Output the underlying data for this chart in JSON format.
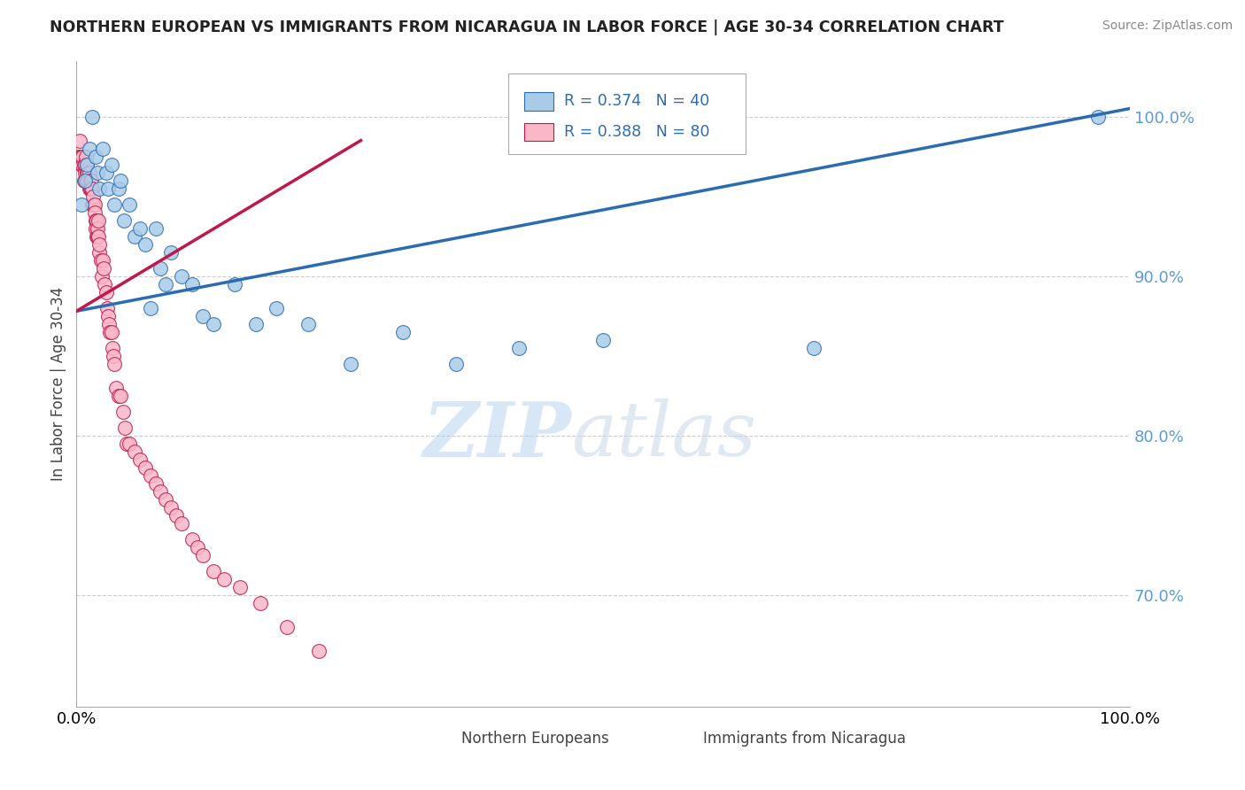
{
  "title": "NORTHERN EUROPEAN VS IMMIGRANTS FROM NICARAGUA IN LABOR FORCE | AGE 30-34 CORRELATION CHART",
  "source": "Source: ZipAtlas.com",
  "ylabel": "In Labor Force | Age 30-34",
  "xlim": [
    0.0,
    1.0
  ],
  "ylim": [
    0.63,
    1.035
  ],
  "blue_R": 0.374,
  "blue_N": 40,
  "pink_R": 0.388,
  "pink_N": 80,
  "blue_color": "#a8cce8",
  "blue_line_color": "#2b6cb0",
  "pink_color": "#f9b8c8",
  "pink_line_color": "#c0174c",
  "watermark_zip": "ZIP",
  "watermark_atlas": "atlas",
  "blue_scatter_x": [
    0.005,
    0.008,
    0.01,
    0.012,
    0.015,
    0.018,
    0.02,
    0.022,
    0.025,
    0.028,
    0.03,
    0.033,
    0.036,
    0.04,
    0.042,
    0.045,
    0.05,
    0.055,
    0.06,
    0.065,
    0.07,
    0.075,
    0.08,
    0.085,
    0.09,
    0.1,
    0.11,
    0.12,
    0.13,
    0.15,
    0.17,
    0.19,
    0.22,
    0.26,
    0.31,
    0.36,
    0.42,
    0.5,
    0.7,
    0.97
  ],
  "blue_scatter_y": [
    0.945,
    0.96,
    0.97,
    0.98,
    1.0,
    0.975,
    0.965,
    0.955,
    0.98,
    0.965,
    0.955,
    0.97,
    0.945,
    0.955,
    0.96,
    0.935,
    0.945,
    0.925,
    0.93,
    0.92,
    0.88,
    0.93,
    0.905,
    0.895,
    0.915,
    0.9,
    0.895,
    0.875,
    0.87,
    0.895,
    0.87,
    0.88,
    0.87,
    0.845,
    0.865,
    0.845,
    0.855,
    0.86,
    0.855,
    1.0
  ],
  "pink_scatter_x": [
    0.002,
    0.003,
    0.004,
    0.005,
    0.005,
    0.006,
    0.006,
    0.007,
    0.007,
    0.008,
    0.008,
    0.009,
    0.009,
    0.01,
    0.01,
    0.01,
    0.011,
    0.011,
    0.012,
    0.012,
    0.013,
    0.013,
    0.014,
    0.014,
    0.015,
    0.015,
    0.016,
    0.016,
    0.017,
    0.017,
    0.018,
    0.018,
    0.019,
    0.019,
    0.02,
    0.02,
    0.021,
    0.021,
    0.022,
    0.022,
    0.023,
    0.024,
    0.025,
    0.026,
    0.027,
    0.028,
    0.029,
    0.03,
    0.031,
    0.032,
    0.033,
    0.034,
    0.035,
    0.036,
    0.038,
    0.04,
    0.042,
    0.044,
    0.046,
    0.048,
    0.05,
    0.055,
    0.06,
    0.065,
    0.07,
    0.075,
    0.08,
    0.085,
    0.09,
    0.095,
    0.1,
    0.11,
    0.115,
    0.12,
    0.13,
    0.14,
    0.155,
    0.175,
    0.2,
    0.23
  ],
  "pink_scatter_y": [
    0.975,
    0.985,
    0.975,
    0.97,
    0.975,
    0.97,
    0.975,
    0.97,
    0.96,
    0.965,
    0.97,
    0.96,
    0.975,
    0.965,
    0.97,
    0.96,
    0.965,
    0.96,
    0.965,
    0.955,
    0.96,
    0.955,
    0.96,
    0.955,
    0.955,
    0.945,
    0.945,
    0.95,
    0.945,
    0.94,
    0.935,
    0.93,
    0.925,
    0.935,
    0.925,
    0.93,
    0.935,
    0.925,
    0.915,
    0.92,
    0.91,
    0.9,
    0.91,
    0.905,
    0.895,
    0.89,
    0.88,
    0.875,
    0.87,
    0.865,
    0.865,
    0.855,
    0.85,
    0.845,
    0.83,
    0.825,
    0.825,
    0.815,
    0.805,
    0.795,
    0.795,
    0.79,
    0.785,
    0.78,
    0.775,
    0.77,
    0.765,
    0.76,
    0.755,
    0.75,
    0.745,
    0.735,
    0.73,
    0.725,
    0.715,
    0.71,
    0.705,
    0.695,
    0.68,
    0.665
  ],
  "blue_trend_x": [
    0.0,
    1.0
  ],
  "blue_trend_y_start": 0.878,
  "blue_trend_y_end": 1.005,
  "pink_trend_x": [
    0.0,
    0.27
  ],
  "pink_trend_y_start": 0.878,
  "pink_trend_y_end": 0.985
}
